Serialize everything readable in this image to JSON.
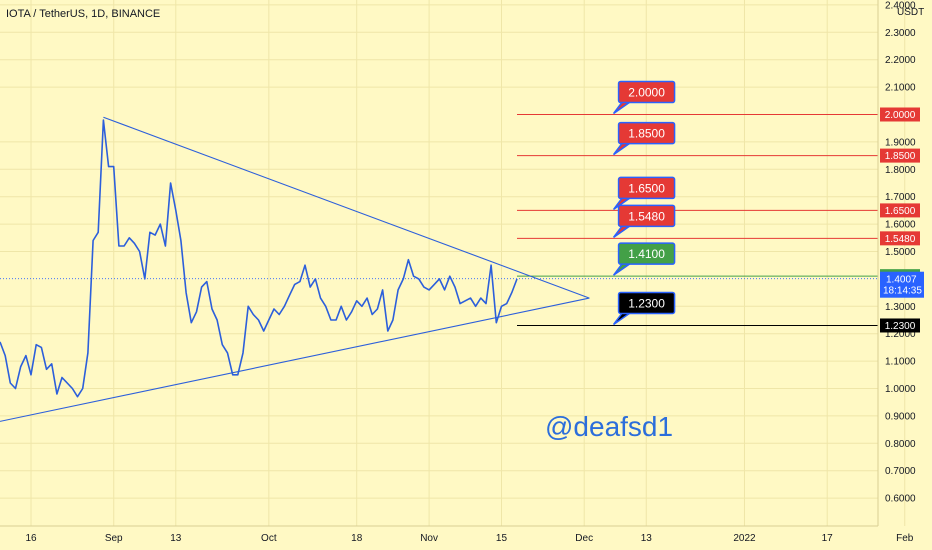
{
  "chart_data": {
    "type": "line",
    "title": "IOTA / TetherUS, 1D, BINANCE",
    "currency_label": "USDT",
    "watermark": "@deafsd1",
    "x_ticks": [
      "16",
      "Sep",
      "13",
      "Oct",
      "18",
      "Nov",
      "15",
      "Dec",
      "13",
      "2022",
      "17",
      "Feb"
    ],
    "y_ticks": [
      "2.4000",
      "2.3000",
      "2.2000",
      "2.1000",
      "1.9000",
      "1.8000",
      "1.7000",
      "1.6000",
      "1.5000",
      "1.3000",
      "1.2000",
      "1.1000",
      "1.0000",
      "0.9000",
      "0.8000",
      "0.7000",
      "0.6000"
    ],
    "ylim": [
      0.52,
      2.47
    ],
    "grid": true,
    "colors": {
      "background": "#fff9c4",
      "line": "#2c5fdb",
      "grid": "#efe6a8",
      "resistance": "#e53935",
      "current": "#43a047",
      "support": "#000000",
      "price_tag": "#2962ff"
    },
    "series": [
      {
        "date_start": "2021-08-10",
        "values": [
          1.17,
          1.12,
          1.02,
          1.0,
          1.08,
          1.12,
          1.05,
          1.16,
          1.15,
          1.07,
          1.09,
          0.98,
          1.04,
          1.02,
          1.0,
          0.97,
          1.0,
          1.13,
          1.54,
          1.57,
          1.98,
          1.81,
          1.81,
          1.52,
          1.52,
          1.55,
          1.53,
          1.5,
          1.4,
          1.57,
          1.56,
          1.6,
          1.52,
          1.75,
          1.65,
          1.54,
          1.35,
          1.24,
          1.28,
          1.37,
          1.39,
          1.29,
          1.25,
          1.16,
          1.13,
          1.05,
          1.05,
          1.13,
          1.3,
          1.27,
          1.25,
          1.21,
          1.25,
          1.29,
          1.27,
          1.3,
          1.34,
          1.38,
          1.39,
          1.45,
          1.37,
          1.4,
          1.33,
          1.3,
          1.25,
          1.25,
          1.3,
          1.25,
          1.28,
          1.32,
          1.3,
          1.33,
          1.27,
          1.29,
          1.36,
          1.21,
          1.25,
          1.36,
          1.4,
          1.47,
          1.41,
          1.4,
          1.37,
          1.36,
          1.38,
          1.4,
          1.36,
          1.41,
          1.37,
          1.31,
          1.32,
          1.33,
          1.3,
          1.33,
          1.31,
          1.45,
          1.24,
          1.3,
          1.31,
          1.35,
          1.4
        ]
      }
    ],
    "levels": [
      {
        "value": 2.0,
        "label": "2.0000",
        "kind": "resistance"
      },
      {
        "value": 1.85,
        "label": "1.8500",
        "kind": "resistance"
      },
      {
        "value": 1.65,
        "label": "1.6500",
        "kind": "resistance"
      },
      {
        "value": 1.548,
        "label": "1.5480",
        "kind": "resistance"
      },
      {
        "value": 1.41,
        "label": "1.4100",
        "kind": "current"
      },
      {
        "value": 1.23,
        "label": "1.2300",
        "kind": "support"
      }
    ],
    "last_price": {
      "value": 1.4007,
      "label": "1.4007",
      "countdown": "18:14:35"
    },
    "trendlines": [
      {
        "name": "upper",
        "from": {
          "date": "2021-08-30",
          "value": 1.99
        },
        "to": {
          "date": "2021-12-02",
          "value": 1.33
        }
      },
      {
        "name": "lower",
        "from": {
          "date": "2021-08-10",
          "value": 0.88
        },
        "to": {
          "date": "2021-12-02",
          "value": 1.33
        }
      }
    ]
  }
}
